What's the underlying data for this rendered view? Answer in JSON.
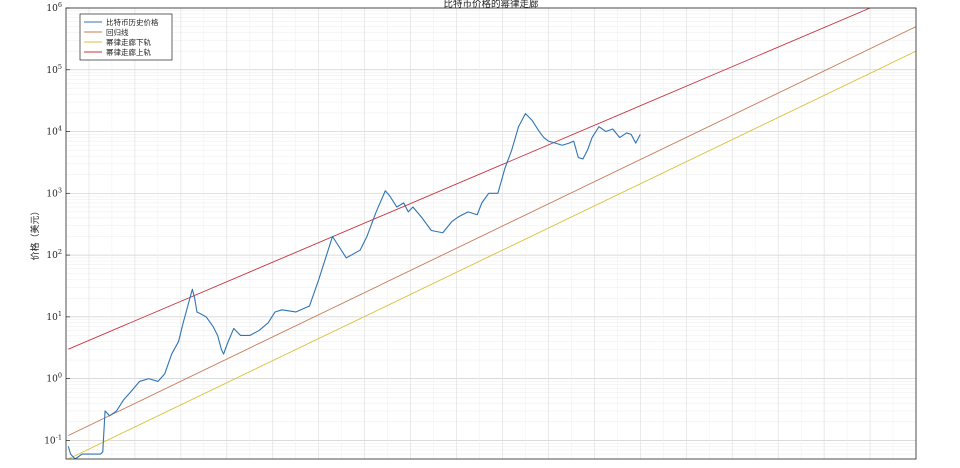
{
  "chart_data": {
    "type": "line",
    "title": "比特币价格的幂律走廊",
    "xlabel": "",
    "ylabel": "价格（美元）",
    "y_scale": "log",
    "ylim": [
      0.05,
      1000000
    ],
    "xlim": [
      2010.5,
      2029.0
    ],
    "grid": true,
    "legend_position": "top-left",
    "y_tick_labels": [
      {
        "base": "10",
        "exp": "-1",
        "value": 0.1
      },
      {
        "base": "10",
        "exp": "0",
        "value": 1
      },
      {
        "base": "10",
        "exp": "1",
        "value": 10
      },
      {
        "base": "10",
        "exp": "2",
        "value": 100
      },
      {
        "base": "10",
        "exp": "3",
        "value": 1000
      },
      {
        "base": "10",
        "exp": "4",
        "value": 10000
      },
      {
        "base": "10",
        "exp": "5",
        "value": 100000
      },
      {
        "base": "10",
        "exp": "6",
        "value": 1000000
      }
    ],
    "series": [
      {
        "name": "比特币历史价格",
        "color": "#2f74b5",
        "x": [
          2010.55,
          2010.6,
          2010.7,
          2010.85,
          2011.0,
          2011.15,
          2011.25,
          2011.3,
          2011.35,
          2011.45,
          2011.6,
          2011.75,
          2011.9,
          2012.1,
          2012.3,
          2012.5,
          2012.65,
          2012.8,
          2012.95,
          2013.05,
          2013.15,
          2013.25,
          2013.3,
          2013.35,
          2013.45,
          2013.55,
          2013.7,
          2013.8,
          2013.88,
          2013.93,
          2014.0,
          2014.15,
          2014.3,
          2014.5,
          2014.7,
          2014.9,
          2015.05,
          2015.2,
          2015.5,
          2015.8,
          2016.0,
          2016.3,
          2016.6,
          2016.9,
          2017.05,
          2017.25,
          2017.45,
          2017.55,
          2017.7,
          2017.85,
          2017.95,
          2018.05,
          2018.25,
          2018.45,
          2018.7,
          2018.9,
          2019.05,
          2019.25,
          2019.45,
          2019.55,
          2019.7,
          2019.9,
          2020.05,
          2020.2,
          2020.35,
          2020.5,
          2020.65,
          2020.8,
          2020.9,
          2021.0,
          2021.15,
          2021.3,
          2021.45,
          2021.55,
          2021.65,
          2021.75,
          2021.85,
          2021.95,
          2022.1,
          2022.25,
          2022.4,
          2022.55,
          2022.7,
          2022.8,
          2022.9,
          2023.0
        ],
        "values": [
          0.08,
          0.06,
          0.05,
          0.06,
          0.06,
          0.06,
          0.06,
          0.065,
          0.3,
          0.25,
          0.3,
          0.45,
          0.6,
          0.9,
          1.0,
          0.9,
          1.2,
          2.5,
          4.0,
          8.0,
          15.0,
          28.0,
          20.0,
          12.0,
          11.0,
          10.0,
          7.0,
          5.0,
          3.0,
          2.5,
          3.5,
          6.5,
          5.0,
          5.0,
          6.0,
          8.0,
          12.0,
          13.0,
          12.0,
          15.0,
          40.0,
          200.0,
          90.0,
          120.0,
          200.0,
          500.0,
          1100.0,
          900.0,
          600.0,
          700.0,
          500.0,
          600.0,
          400.0,
          250.0,
          230.0,
          350.0,
          420.0,
          500.0,
          450.0,
          700.0,
          1000.0,
          1000.0,
          2500.0,
          5000.0,
          12000.0,
          19500.0,
          15000.0,
          10000.0,
          8000.0,
          7000.0,
          6500.0,
          6000.0,
          6500.0,
          7000.0,
          3800.0,
          3600.0,
          5000.0,
          8000.0,
          12000.0,
          10000.0,
          11000.0,
          8000.0,
          9500.0,
          9000.0,
          6500.0,
          9000.0
        ]
      },
      {
        "name": "回归线",
        "color": "#c87a56",
        "x": [
          2010.55,
          2029.0
        ],
        "values": [
          0.12,
          500000
        ]
      },
      {
        "name": "幂律走廊下轨",
        "color": "#d9c13a",
        "x": [
          2010.55,
          2029.0
        ],
        "values": [
          0.05,
          200000
        ]
      },
      {
        "name": "幂律走廊上轨",
        "color": "#c8333f",
        "x": [
          2010.55,
          2028.0
        ],
        "values": [
          3.0,
          1000000
        ]
      }
    ]
  }
}
